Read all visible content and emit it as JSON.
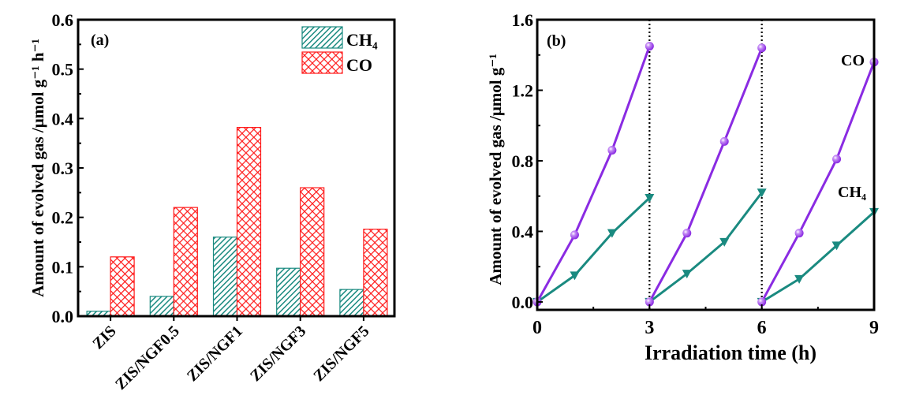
{
  "chart_data": [
    {
      "type": "bar",
      "panel_label": "(a)",
      "categories": [
        "ZIS",
        "ZIS/NGF0.5",
        "ZIS/NGF1",
        "ZIS/NGF3",
        "ZIS/NGF5"
      ],
      "series": [
        {
          "name": "CH₄",
          "values": [
            0.01,
            0.04,
            0.16,
            0.097,
            0.054
          ],
          "color": "#1a8a80",
          "pattern": "diagonal-hatch"
        },
        {
          "name": "CO",
          "values": [
            0.12,
            0.22,
            0.382,
            0.26,
            0.176
          ],
          "color": "#ff1a1a",
          "pattern": "crosshatch"
        }
      ],
      "xlabel": "",
      "ylabel": "Amount of evolved gas /μmol g⁻¹ h⁻¹",
      "ylim": [
        0,
        0.6
      ],
      "yticks": [
        "0.0",
        "0.1",
        "0.2",
        "0.3",
        "0.4",
        "0.5",
        "0.6"
      ],
      "legend": "top-right",
      "grid": false
    },
    {
      "type": "line",
      "panel_label": "(b)",
      "series": [
        {
          "name": "CO",
          "color": "#8a2be2",
          "marker": "sphere",
          "segments": [
            {
              "x": [
                0,
                1,
                2,
                3
              ],
              "y": [
                0,
                0.38,
                0.86,
                1.45
              ]
            },
            {
              "x": [
                3,
                4,
                5,
                6
              ],
              "y": [
                0,
                0.39,
                0.91,
                1.44
              ]
            },
            {
              "x": [
                6,
                7,
                8,
                9
              ],
              "y": [
                0,
                0.39,
                0.81,
                1.36
              ]
            }
          ]
        },
        {
          "name": "CH₄",
          "color": "#1a8a80",
          "marker": "down-triangle",
          "segments": [
            {
              "x": [
                0,
                1,
                2,
                3
              ],
              "y": [
                0,
                0.15,
                0.39,
                0.59
              ]
            },
            {
              "x": [
                3,
                4,
                5,
                6
              ],
              "y": [
                0,
                0.16,
                0.34,
                0.62
              ]
            },
            {
              "x": [
                6,
                7,
                8,
                9
              ],
              "y": [
                0,
                0.13,
                0.32,
                0.51
              ]
            }
          ]
        }
      ],
      "xlabel": "Irradiation time (h)",
      "ylabel": "Amount of evolved gas /μmol g⁻¹",
      "xlim": [
        0,
        9
      ],
      "ylim": [
        -0.045,
        1.6
      ],
      "xticks": [
        "0",
        "3",
        "6",
        "9"
      ],
      "yticks": [
        "0.0",
        "0.4",
        "0.8",
        "1.2",
        "1.6"
      ],
      "cycle_dividers_x": [
        3,
        6
      ],
      "legend": "inline labels at right",
      "grid": false
    }
  ]
}
